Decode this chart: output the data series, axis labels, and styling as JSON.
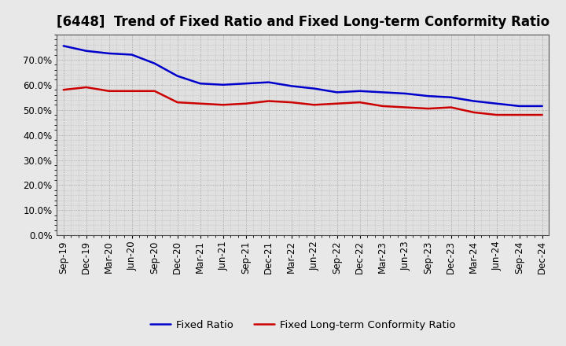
{
  "title": "[6448]  Trend of Fixed Ratio and Fixed Long-term Conformity Ratio",
  "labels": [
    "Sep-19",
    "Dec-19",
    "Mar-20",
    "Jun-20",
    "Sep-20",
    "Dec-20",
    "Mar-21",
    "Jun-21",
    "Sep-21",
    "Dec-21",
    "Mar-22",
    "Jun-22",
    "Sep-22",
    "Dec-22",
    "Mar-23",
    "Jun-23",
    "Sep-23",
    "Dec-23",
    "Mar-24",
    "Jun-24",
    "Sep-24",
    "Dec-24"
  ],
  "fixed_ratio": [
    75.5,
    73.5,
    72.5,
    72.0,
    68.5,
    63.5,
    60.5,
    60.0,
    60.5,
    61.0,
    59.5,
    58.5,
    57.0,
    57.5,
    57.0,
    56.5,
    55.5,
    55.0,
    53.5,
    52.5,
    51.5,
    51.5
  ],
  "fixed_lt_ratio": [
    58.0,
    59.0,
    57.5,
    57.5,
    57.5,
    53.0,
    52.5,
    52.0,
    52.5,
    53.5,
    53.0,
    52.0,
    52.5,
    53.0,
    51.5,
    51.0,
    50.5,
    51.0,
    49.0,
    48.0,
    48.0,
    48.0
  ],
  "fixed_ratio_color": "#0000cc",
  "fixed_lt_ratio_color": "#cc0000",
  "ylim_min": 0,
  "ylim_max": 80,
  "yticks": [
    0,
    10,
    20,
    30,
    40,
    50,
    60,
    70
  ],
  "ytick_labels": [
    "0.0%",
    "10.0%",
    "20.0%",
    "30.0%",
    "40.0%",
    "50.0%",
    "60.0%",
    "70.0%"
  ],
  "bg_color": "#e8e8e8",
  "plot_bg_color": "#e0e0e0",
  "grid_color": "#999999",
  "legend_fixed_ratio": "Fixed Ratio",
  "legend_fixed_lt_ratio": "Fixed Long-term Conformity Ratio",
  "line_width": 1.8,
  "title_fontsize": 12,
  "tick_fontsize": 8.5
}
